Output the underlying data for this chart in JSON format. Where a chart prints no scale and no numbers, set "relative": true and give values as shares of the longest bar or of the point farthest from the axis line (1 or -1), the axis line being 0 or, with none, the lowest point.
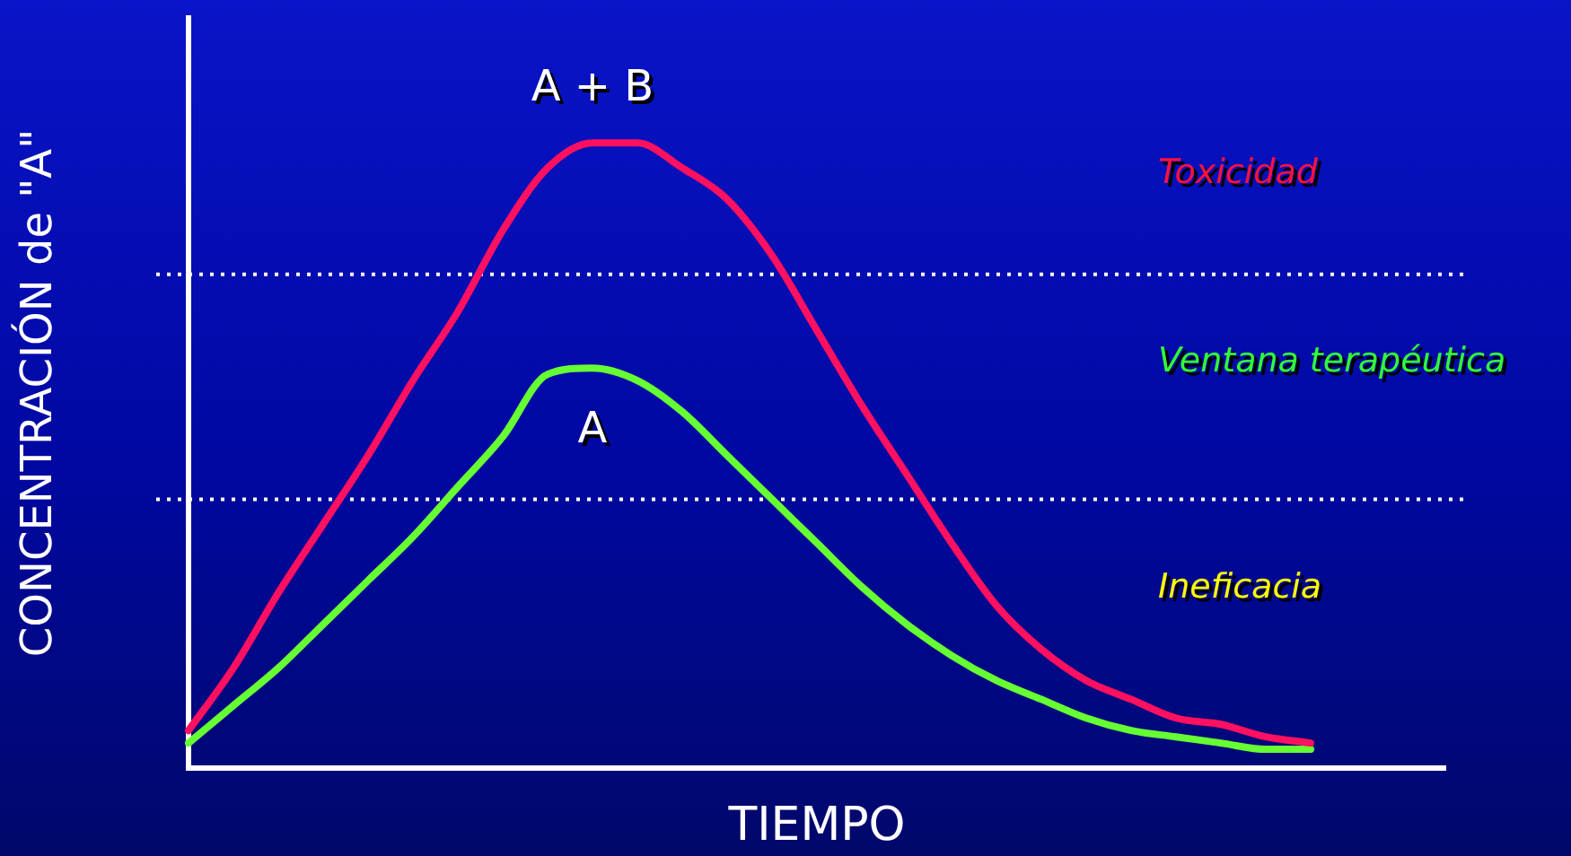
{
  "chart_data": {
    "type": "line",
    "relative": true,
    "xlabel": "TIEMPO",
    "ylabel": "CONCENTRACIÓN de \"A\"",
    "legend": false,
    "grid": false,
    "marker": "none",
    "line_style": "solid",
    "categories": [
      null,
      null,
      null,
      null,
      null,
      null,
      null,
      null,
      null,
      null,
      null,
      null,
      null,
      null,
      null,
      null,
      null,
      null,
      null,
      null,
      null,
      null,
      null,
      null,
      null,
      null,
      null,
      null,
      null
    ],
    "series": [
      {
        "name": "A + B",
        "color": "#ff1060",
        "values": [
          0.06,
          0.16,
          0.28,
          0.39,
          0.5,
          0.62,
          0.73,
          0.86,
          0.96,
          1,
          1,
          0.96,
          0.91,
          0.82,
          0.7,
          0.58,
          0.47,
          0.36,
          0.26,
          0.19,
          0.14,
          0.11,
          0.08,
          0.07,
          0.05,
          0.04,
          null,
          null,
          null
        ]
      },
      {
        "name": "A",
        "color": "#66ff33",
        "values": [
          0.04,
          0.1,
          0.16,
          0.23,
          0.3,
          0.37,
          0.45,
          0.53,
          0.63,
          0.64,
          0.62,
          0.57,
          0.5,
          0.43,
          0.36,
          0.29,
          0.23,
          0.18,
          0.14,
          0.11,
          0.08,
          0.06,
          0.05,
          0.04,
          0.03,
          0.03,
          null,
          null,
          null
        ]
      }
    ],
    "ref_lines": [
      {
        "axis": "y",
        "value": 0.79,
        "color": "#ffffff",
        "line_style": "dotted"
      },
      {
        "axis": "y",
        "value": 0.43,
        "color": "#ffffff",
        "line_style": "dotted"
      }
    ],
    "annotations": [
      "Toxicidad",
      "Ventana terapéutica",
      "Ineficacia"
    ]
  }
}
